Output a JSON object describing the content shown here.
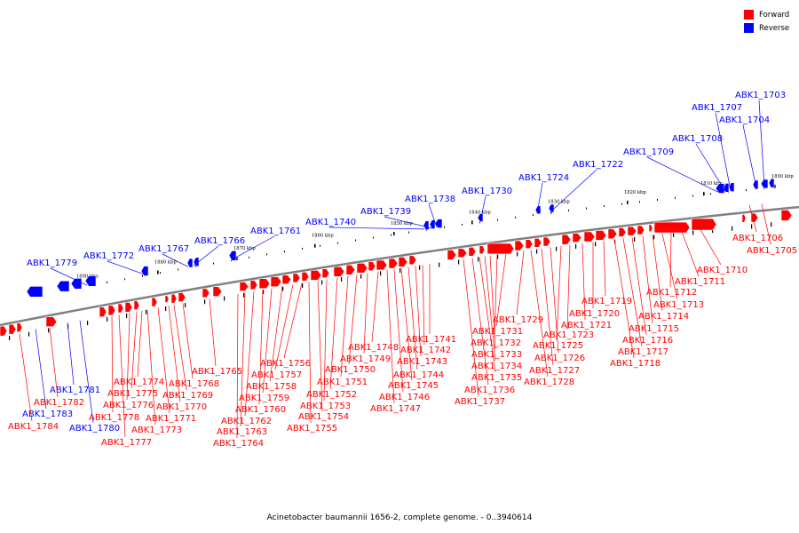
{
  "legend": [
    {
      "label": "Forward",
      "color": "#ff0000"
    },
    {
      "label": "Reverse",
      "color": "#0000ff"
    }
  ],
  "caption": "Acinetobacter baumannii 1656-2, complete genome. - 0..3940614",
  "colors": {
    "forward": "#ff0000",
    "reverse": "#0000ff",
    "axis": "#808080"
  },
  "ticks": [
    {
      "label": "1800 kbp",
      "kbp": 1800
    },
    {
      "label": "1810 kbp",
      "kbp": 1810
    },
    {
      "label": "1820 kbp",
      "kbp": 1820
    },
    {
      "label": "1830 kbp",
      "kbp": 1830
    },
    {
      "label": "1840 kbp",
      "kbp": 1840
    },
    {
      "label": "1850 kbp",
      "kbp": 1850
    },
    {
      "label": "1860 kbp",
      "kbp": 1860
    },
    {
      "label": "1870 kbp",
      "kbp": 1870
    },
    {
      "label": "1880 kbp",
      "kbp": 1880
    },
    {
      "label": "1890 kbp",
      "kbp": 1890
    }
  ],
  "reverse_genes": [
    "ABK1_1703",
    "ABK1_1704",
    "ABK1_1707",
    "ABK1_1708",
    "ABK1_1709",
    "ABK1_1722",
    "ABK1_1724",
    "ABK1_1730",
    "ABK1_1738",
    "ABK1_1739",
    "ABK1_1740",
    "ABK1_1761",
    "ABK1_1766",
    "ABK1_1767",
    "ABK1_1772",
    "ABK1_1779",
    "ABK1_1780",
    "ABK1_1781",
    "ABK1_1783"
  ],
  "forward_genes": [
    "ABK1_1705",
    "ABK1_1706",
    "ABK1_1710",
    "ABK1_1711",
    "ABK1_1712",
    "ABK1_1713",
    "ABK1_1714",
    "ABK1_1715",
    "ABK1_1716",
    "ABK1_1717",
    "ABK1_1718",
    "ABK1_1719",
    "ABK1_1720",
    "ABK1_1721",
    "ABK1_1723",
    "ABK1_1725",
    "ABK1_1726",
    "ABK1_1727",
    "ABK1_1728",
    "ABK1_1729",
    "ABK1_1731",
    "ABK1_1732",
    "ABK1_1733",
    "ABK1_1734",
    "ABK1_1735",
    "ABK1_1736",
    "ABK1_1737",
    "ABK1_1741",
    "ABK1_1742",
    "ABK1_1743",
    "ABK1_1744",
    "ABK1_1745",
    "ABK1_1746",
    "ABK1_1747",
    "ABK1_1748",
    "ABK1_1749",
    "ABK1_1750",
    "ABK1_1751",
    "ABK1_1752",
    "ABK1_1753",
    "ABK1_1754",
    "ABK1_1755",
    "ABK1_1756",
    "ABK1_1757",
    "ABK1_1758",
    "ABK1_1759",
    "ABK1_1760",
    "ABK1_1762",
    "ABK1_1763",
    "ABK1_1764",
    "ABK1_1765",
    "ABK1_1768",
    "ABK1_1769",
    "ABK1_1770",
    "ABK1_1771",
    "ABK1_1773",
    "ABK1_1774",
    "ABK1_1775",
    "ABK1_1776",
    "ABK1_1777",
    "ABK1_1778",
    "ABK1_1782",
    "ABK1_1784"
  ]
}
